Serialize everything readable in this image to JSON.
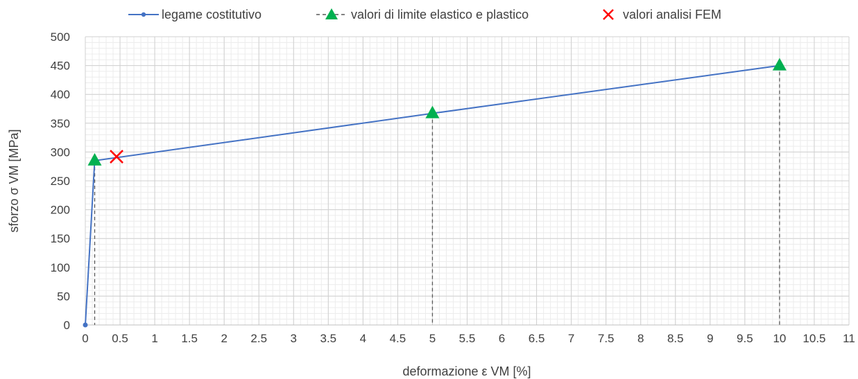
{
  "chart_data": {
    "type": "line",
    "title": "",
    "xlabel": "deformazione ε VM  [%]",
    "ylabel": "sforzo σ VM [MPa]",
    "xlim": [
      0,
      11
    ],
    "ylim": [
      0,
      500
    ],
    "x_ticks": [
      "0",
      "0.5",
      "1",
      "1.5",
      "2",
      "2.5",
      "3",
      "3.5",
      "4",
      "4.5",
      "5",
      "5.5",
      "6",
      "6.5",
      "7",
      "7.5",
      "8",
      "8.5",
      "9",
      "9.5",
      "10",
      "10.5",
      "11"
    ],
    "y_ticks": [
      "0",
      "50",
      "100",
      "150",
      "200",
      "250",
      "300",
      "350",
      "400",
      "450",
      "500"
    ],
    "grid": true,
    "legend_position": "top",
    "series": [
      {
        "name": "legame costitutivo",
        "style": "line",
        "color": "#4472C4",
        "points": [
          [
            0,
            0
          ],
          [
            0.135,
            285
          ],
          [
            5,
            367
          ],
          [
            10,
            450
          ]
        ]
      },
      {
        "name": "valori di limite elastico e plastico",
        "style": "triangle-markers-with-dashed-droplines",
        "color": "#00B050",
        "points": [
          [
            0.135,
            285
          ],
          [
            5,
            367
          ],
          [
            10,
            450
          ]
        ]
      },
      {
        "name": "valori analisi FEM",
        "style": "x-marker",
        "color": "#FF0000",
        "points": [
          [
            0.45,
            292
          ]
        ]
      }
    ]
  }
}
